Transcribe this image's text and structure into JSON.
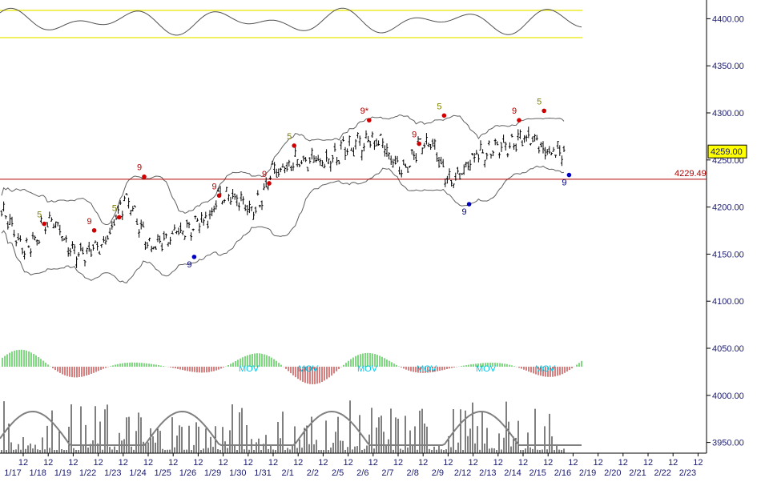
{
  "chart_data": {
    "type": "candlestick",
    "title": "",
    "xlabel": "",
    "ylabel": "",
    "ylim": [
      3938,
      4430
    ],
    "y_ticks": [
      "4400.00",
      "4350.00",
      "4300.00",
      "4250.00",
      "4200.00",
      "4150.00",
      "4100.00",
      "4050.00",
      "4000.00",
      "3950.00"
    ],
    "y_tick_values": [
      4400,
      4350,
      4300,
      4250,
      4200,
      4150,
      4100,
      4050,
      4000,
      3950
    ],
    "x_date_labels": [
      "1/17",
      "1/18",
      "1/19",
      "1/22",
      "1/23",
      "1/24",
      "1/25",
      "1/26",
      "1/29",
      "1/30",
      "1/31",
      "2/1",
      "2/2",
      "2/5",
      "2/6",
      "2/7",
      "2/8",
      "2/9",
      "2/12",
      "2/13",
      "2/14",
      "2/15",
      "2/16",
      "2/19",
      "2/20",
      "2/21",
      "2/22",
      "2/23"
    ],
    "x_hour_label": "12",
    "last_price": {
      "label": "4259.00",
      "value": 4259.0,
      "color": "#ffff00"
    },
    "level_line": {
      "label": "4229.49",
      "value": 4229.49,
      "color": "#b00000"
    },
    "price_anchors": [
      [
        "1/17",
        4195
      ],
      [
        "1/18",
        4155
      ],
      [
        "1/19",
        4188
      ],
      [
        "1/22",
        4148
      ],
      [
        "1/23",
        4162
      ],
      [
        "1/24",
        4205
      ],
      [
        "1/25",
        4160
      ],
      [
        "1/26",
        4172
      ],
      [
        "1/29",
        4185
      ],
      [
        "1/30",
        4215
      ],
      [
        "1/31",
        4198
      ],
      [
        "2/1",
        4238
      ],
      [
        "2/2",
        4250
      ],
      [
        "2/5",
        4248
      ],
      [
        "2/6",
        4265
      ],
      [
        "2/7",
        4270
      ],
      [
        "2/8",
        4240
      ],
      [
        "2/9",
        4270
      ],
      [
        "2/12",
        4228
      ],
      [
        "2/13",
        4255
      ],
      [
        "2/14",
        4265
      ],
      [
        "2/15",
        4275
      ],
      [
        "2/16",
        4259
      ]
    ],
    "signals": [
      {
        "text": "5",
        "date": "1/18",
        "color": "#808000"
      },
      {
        "text": "9",
        "date": "1/22",
        "color": "#b00000"
      },
      {
        "text": "5",
        "date": "1/23",
        "color": "#808000"
      },
      {
        "text": "9",
        "date": "1/24",
        "color": "#b00000"
      },
      {
        "text": "9",
        "date": "1/26",
        "color": "#000080"
      },
      {
        "text": "9",
        "date": "1/29",
        "color": "#b00000"
      },
      {
        "text": "9",
        "date": "1/31",
        "color": "#b00000"
      },
      {
        "text": "5",
        "date": "2/1",
        "color": "#808000"
      },
      {
        "text": "9*",
        "date": "2/6",
        "color": "#b00000"
      },
      {
        "text": "9",
        "date": "2/8",
        "color": "#b00000"
      },
      {
        "text": "5",
        "date": "2/9",
        "color": "#808000"
      },
      {
        "text": "9",
        "date": "2/12",
        "color": "#000080"
      },
      {
        "text": "9",
        "date": "2/14",
        "color": "#b00000"
      },
      {
        "text": "5",
        "date": "2/15",
        "color": "#808000"
      },
      {
        "text": "9",
        "date": "2/16",
        "color": "#000080"
      }
    ],
    "osc_labels": [
      "MOV",
      "MOV",
      "MOV",
      "MOV",
      "MOV",
      "MOV"
    ],
    "colors": {
      "axis_text": "#1a1a70",
      "price_bar": "#000000",
      "bands": "#606060",
      "oscillator_bounds": "#e8e800",
      "histogram_up": "#00b000",
      "histogram_down": "#b00000",
      "mov_text": "#00c8e8",
      "volume": "#000000",
      "volume_avg": "#808080"
    }
  }
}
